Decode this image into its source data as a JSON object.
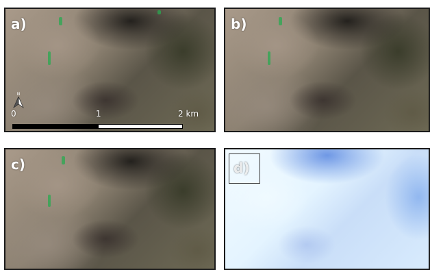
{
  "panels": {
    "a": {
      "label": "a)"
    },
    "b": {
      "label": "b)"
    },
    "c": {
      "label": "c)"
    },
    "d": {
      "label": "d)"
    }
  },
  "scale_bar": {
    "tick_0": "0",
    "tick_1": "1",
    "tick_2": "2 km"
  },
  "north_arrow": {
    "icon": "north-arrow-icon",
    "letter": "N"
  },
  "colors": {
    "panel_border": "#1a1a1a",
    "label_text": "#ffffff",
    "vegetation_speck": "#28aa50"
  }
}
